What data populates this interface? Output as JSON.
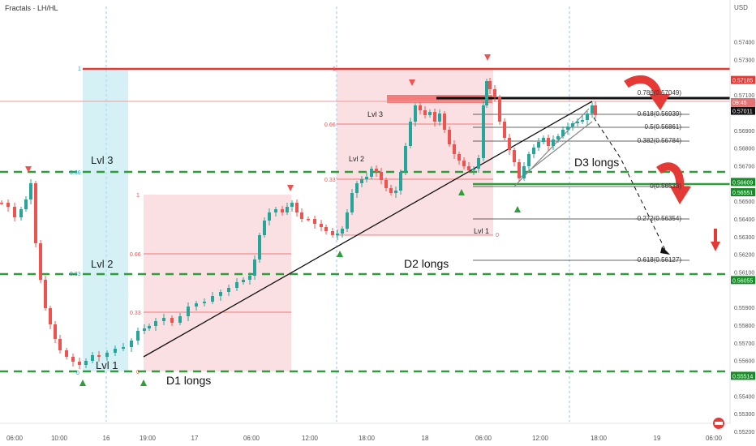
{
  "header": {
    "title": "Fractals · LH/HL",
    "currency": "USD"
  },
  "chart_data": {
    "type": "candlestick",
    "symbol_label": "Fractals · LH/HL",
    "currency": "USD",
    "ylim": [
      0.552,
      0.576
    ],
    "y_ticks": [
      "0.57400",
      "0.57300",
      "0.57100",
      "0.56900",
      "0.56800",
      "0.56700",
      "0.56500",
      "0.56400",
      "0.56300",
      "0.56200",
      "0.56100",
      "0.55900",
      "0.55800",
      "0.55700",
      "0.55600",
      "0.55400",
      "0.55300",
      "0.55200"
    ],
    "x_ticks": [
      "06:00",
      "10:00",
      "16",
      "19:00",
      "17",
      "06:00",
      "12:00",
      "18:00",
      "18",
      "06:00",
      "12:00",
      "18:00",
      "19",
      "06:00"
    ],
    "price_badges": [
      {
        "value": "0.57185",
        "color": "#e53935"
      },
      {
        "value": "0.57011",
        "color": "#111111"
      },
      {
        "value": "09:45",
        "color": "#e57373"
      },
      {
        "value": "0.56609",
        "color": "#1b8a2a"
      },
      {
        "value": "0.56551",
        "color": "#1b8a2a"
      },
      {
        "value": "0.56055",
        "color": "#1b8a2a"
      },
      {
        "value": "0.55514",
        "color": "#1b8a2a"
      }
    ],
    "range_labels": [
      "Lvl 3",
      "Lvl 2",
      "Lvl 1",
      "Lvl 3",
      "Lvl 2",
      "Lvl 1"
    ],
    "trade_labels": [
      "D1 longs",
      "D2 longs",
      "D3 longs"
    ],
    "fib_labels": [
      "0.786(0.57049)",
      "0.618(0.56939)",
      "0.5(0.56861)",
      "0.382(0.56784)",
      "0(0.56533)",
      "-0.272(0.56354)",
      "-0.618(0.56127)"
    ],
    "box_labels": [
      "1",
      "0.66",
      "0.33",
      "0",
      "1",
      "0.66",
      "0.33",
      "0",
      "1",
      "0.66",
      "0.33",
      "0"
    ],
    "colors": {
      "up": "#26a69a",
      "down": "#ef5350",
      "level": "#2e9e3a",
      "resistance": "#e53935",
      "arrow": "#e53935",
      "box": "#f5c6cb",
      "cyan": "#b3e5ef"
    }
  }
}
